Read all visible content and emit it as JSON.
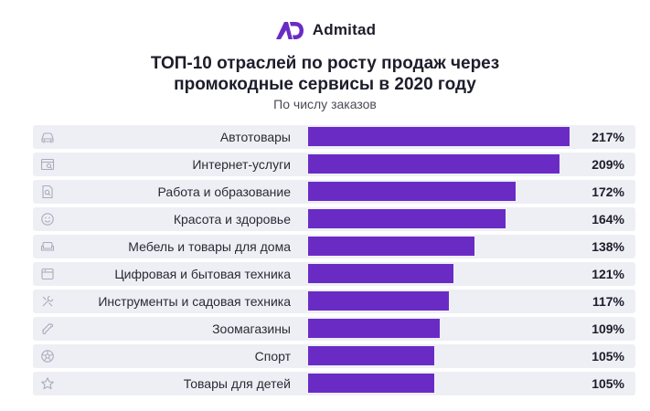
{
  "logo": {
    "name": "Admitad"
  },
  "header": {
    "title_line1": "ТОП-10 отраслей по росту продаж через",
    "title_line2": "промокодные сервисы в 2020 году",
    "subtitle": "По числу заказов"
  },
  "colors": {
    "bar": "#6a2bc5",
    "row_bg": "#eeeff5",
    "icon": "#a9abbb"
  },
  "chart_data": {
    "type": "bar",
    "orientation": "horizontal",
    "title": "ТОП-10 отраслей по росту продаж через промокодные сервисы в 2020 году",
    "subtitle": "По числу заказов",
    "unit": "%",
    "xlim": [
      0,
      217
    ],
    "categories": [
      "Автотовары",
      "Интернет-услуги",
      "Работа и образование",
      "Красота и здоровье",
      "Мебель и товары для дома",
      "Цифровая и бытовая техника",
      "Инструменты и садовая техника",
      "Зоомагазины",
      "Спорт",
      "Товары для детей"
    ],
    "values": [
      217,
      209,
      172,
      164,
      138,
      121,
      117,
      109,
      105,
      105
    ],
    "value_labels": [
      "217%",
      "209%",
      "172%",
      "164%",
      "138%",
      "121%",
      "117%",
      "109%",
      "105%",
      "105%"
    ],
    "icons": [
      "car-icon",
      "browser-search-icon",
      "document-search-icon",
      "smile-icon",
      "sofa-icon",
      "appliance-icon",
      "tools-icon",
      "bone-icon",
      "ball-icon",
      "star-icon"
    ]
  }
}
